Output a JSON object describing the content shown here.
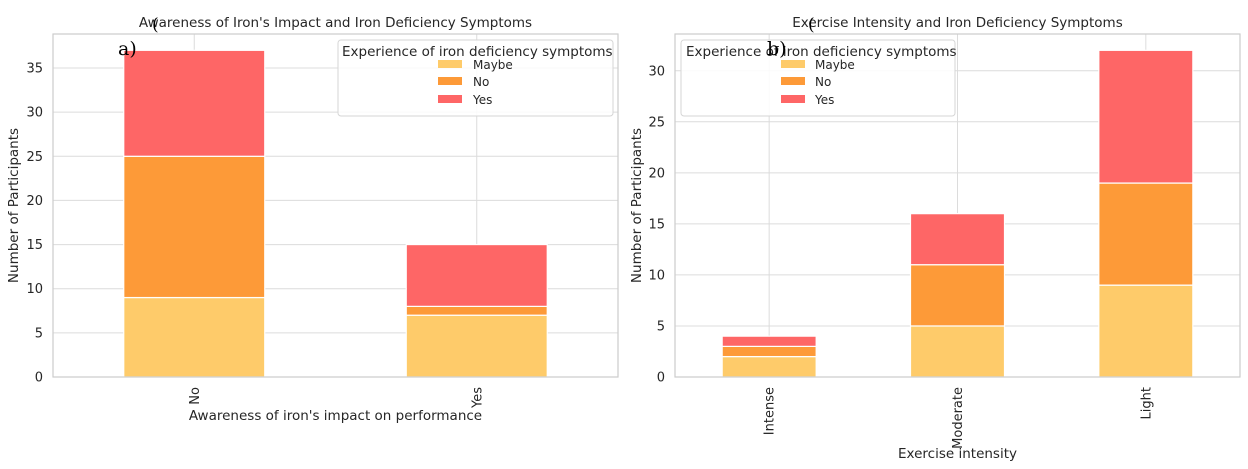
{
  "chart_data": [
    {
      "type": "bar",
      "stacked": true,
      "panel_label": "a)",
      "overlay_mark": "(",
      "title": "Awareness of Iron's Impact and Iron Deficiency Symptoms",
      "xlabel": "Awareness of iron's impact on performance",
      "ylabel": "Number of Participants",
      "categories": [
        "No",
        "Yes"
      ],
      "series": [
        {
          "name": "Maybe",
          "color": "#FECB6A",
          "values": [
            9,
            7
          ]
        },
        {
          "name": "No",
          "color": "#FD9A38",
          "values": [
            16,
            1
          ]
        },
        {
          "name": "Yes",
          "color": "#FE6666",
          "values": [
            12,
            7
          ]
        }
      ],
      "ylim": [
        0,
        38.85
      ],
      "yticks": [
        0,
        5,
        10,
        15,
        20,
        25,
        30,
        35
      ],
      "grid": true,
      "legend": {
        "title": "Experience of iron deficiency symptoms",
        "position": "top-right"
      }
    },
    {
      "type": "bar",
      "stacked": true,
      "panel_label": "b)",
      "overlay_mark": "(",
      "title": "Exercise Intensity and Iron Deficiency Symptoms",
      "xlabel": "Exercise intensity",
      "ylabel": "Number of Participants",
      "categories": [
        "Intense",
        "Moderate",
        "Light"
      ],
      "series": [
        {
          "name": "Maybe",
          "color": "#FECB6A",
          "values": [
            2,
            5,
            9
          ]
        },
        {
          "name": "No",
          "color": "#FD9A38",
          "values": [
            1,
            6,
            10
          ]
        },
        {
          "name": "Yes",
          "color": "#FE6666",
          "values": [
            1,
            5,
            13
          ]
        }
      ],
      "ylim": [
        0,
        33.6
      ],
      "yticks": [
        0,
        5,
        10,
        15,
        20,
        25,
        30
      ],
      "grid": true,
      "legend": {
        "title": "Experience of iron deficiency symptoms",
        "position": "top-left"
      }
    }
  ]
}
